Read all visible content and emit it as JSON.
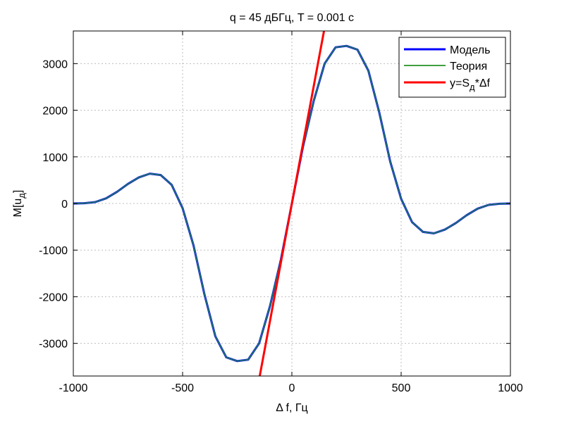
{
  "chart_data": {
    "type": "line",
    "title": "q = 45 дБГц, T = 0.001 с",
    "xlabel": "Δ f, Гц",
    "ylabel": "M[u",
    "ylabel_sub": "д",
    "ylabel_tail": "]",
    "xlim": [
      -1000,
      1000
    ],
    "ylim": [
      -3700,
      3700
    ],
    "xticks": [
      -1000,
      -500,
      0,
      500,
      1000
    ],
    "yticks": [
      -3000,
      -2000,
      -1000,
      0,
      1000,
      2000,
      3000
    ],
    "grid": true,
    "legend_position": "top-right",
    "colors": {
      "model": "#0000ff",
      "theory": "#008000",
      "line": "#ff0000",
      "overlay": "#1f6f6f"
    },
    "series": [
      {
        "name": "Модель",
        "x": [
          -1000,
          -950,
          -900,
          -850,
          -800,
          -750,
          -700,
          -650,
          -600,
          -550,
          -500,
          -450,
          -400,
          -350,
          -300,
          -250,
          -200,
          -150,
          -100,
          -50,
          0,
          50,
          100,
          150,
          200,
          250,
          300,
          350,
          400,
          450,
          500,
          550,
          600,
          650,
          700,
          750,
          800,
          850,
          900,
          950,
          1000
        ],
        "y": [
          0,
          5,
          30,
          110,
          250,
          420,
          560,
          640,
          610,
          400,
          -100,
          -900,
          -1950,
          -2850,
          -3300,
          -3380,
          -3350,
          -3000,
          -2200,
          -1200,
          0,
          1200,
          2200,
          3000,
          3350,
          3380,
          3300,
          2850,
          1950,
          900,
          100,
          -400,
          -610,
          -640,
          -560,
          -420,
          -250,
          -110,
          -30,
          -5,
          0
        ]
      },
      {
        "name": "Теория",
        "x": [
          -1000,
          -950,
          -900,
          -850,
          -800,
          -750,
          -700,
          -650,
          -600,
          -550,
          -500,
          -450,
          -400,
          -350,
          -300,
          -250,
          -200,
          -150,
          -100,
          -50,
          0,
          50,
          100,
          150,
          200,
          250,
          300,
          350,
          400,
          450,
          500,
          550,
          600,
          650,
          700,
          750,
          800,
          850,
          900,
          950,
          1000
        ],
        "y": [
          0,
          5,
          30,
          110,
          250,
          420,
          560,
          640,
          610,
          400,
          -100,
          -900,
          -1950,
          -2850,
          -3300,
          -3380,
          -3350,
          -3000,
          -2200,
          -1200,
          0,
          1200,
          2200,
          3000,
          3350,
          3380,
          3300,
          2850,
          1950,
          900,
          100,
          -400,
          -610,
          -640,
          -560,
          -420,
          -250,
          -110,
          -30,
          -5,
          0
        ]
      },
      {
        "name": "y=S",
        "name_sub": "д",
        "name_tail": "*Δf",
        "x": [
          -147,
          147
        ],
        "y": [
          -3700,
          3700
        ]
      }
    ]
  }
}
